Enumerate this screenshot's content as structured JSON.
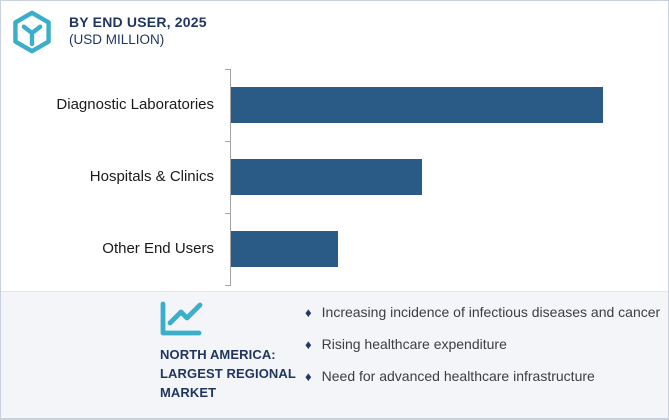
{
  "header": {
    "title": "BY END USER, 2025",
    "subtitle": "(USD MILLION)",
    "logo_icon": "hexagon-cube-icon"
  },
  "chart_data": {
    "type": "bar",
    "orientation": "horizontal",
    "title": "BY END USER, 2025 (USD MILLION)",
    "categories": [
      "Diagnostic Laboratories",
      "Hospitals & Clinics",
      "Other End Users"
    ],
    "values_pct_of_max": [
      100,
      51.3,
      28.8
    ],
    "value_labels_shown": false,
    "axis_numeric_labels_shown": false,
    "grid": false,
    "legend": false,
    "bar_color": "#2a5b87",
    "axis_color": "#a3a3a3"
  },
  "footer": {
    "icon": "line-chart-icon",
    "heading": "NORTH AMERICA: LARGEST REGIONAL MARKET",
    "bullet_marker": "♦",
    "bullets": [
      "Increasing incidence of infectious diseases and cancer",
      "Rising healthcare expenditure",
      "Need for advanced healthcare infrastructure"
    ]
  },
  "colors": {
    "accent_teal": "#3baecb",
    "navy_text": "#1f355f",
    "bar_blue": "#2a5b87",
    "panel_bg": "#f3f5f8",
    "border": "#c9d1dd",
    "bullet_text": "#3d3d3d"
  }
}
